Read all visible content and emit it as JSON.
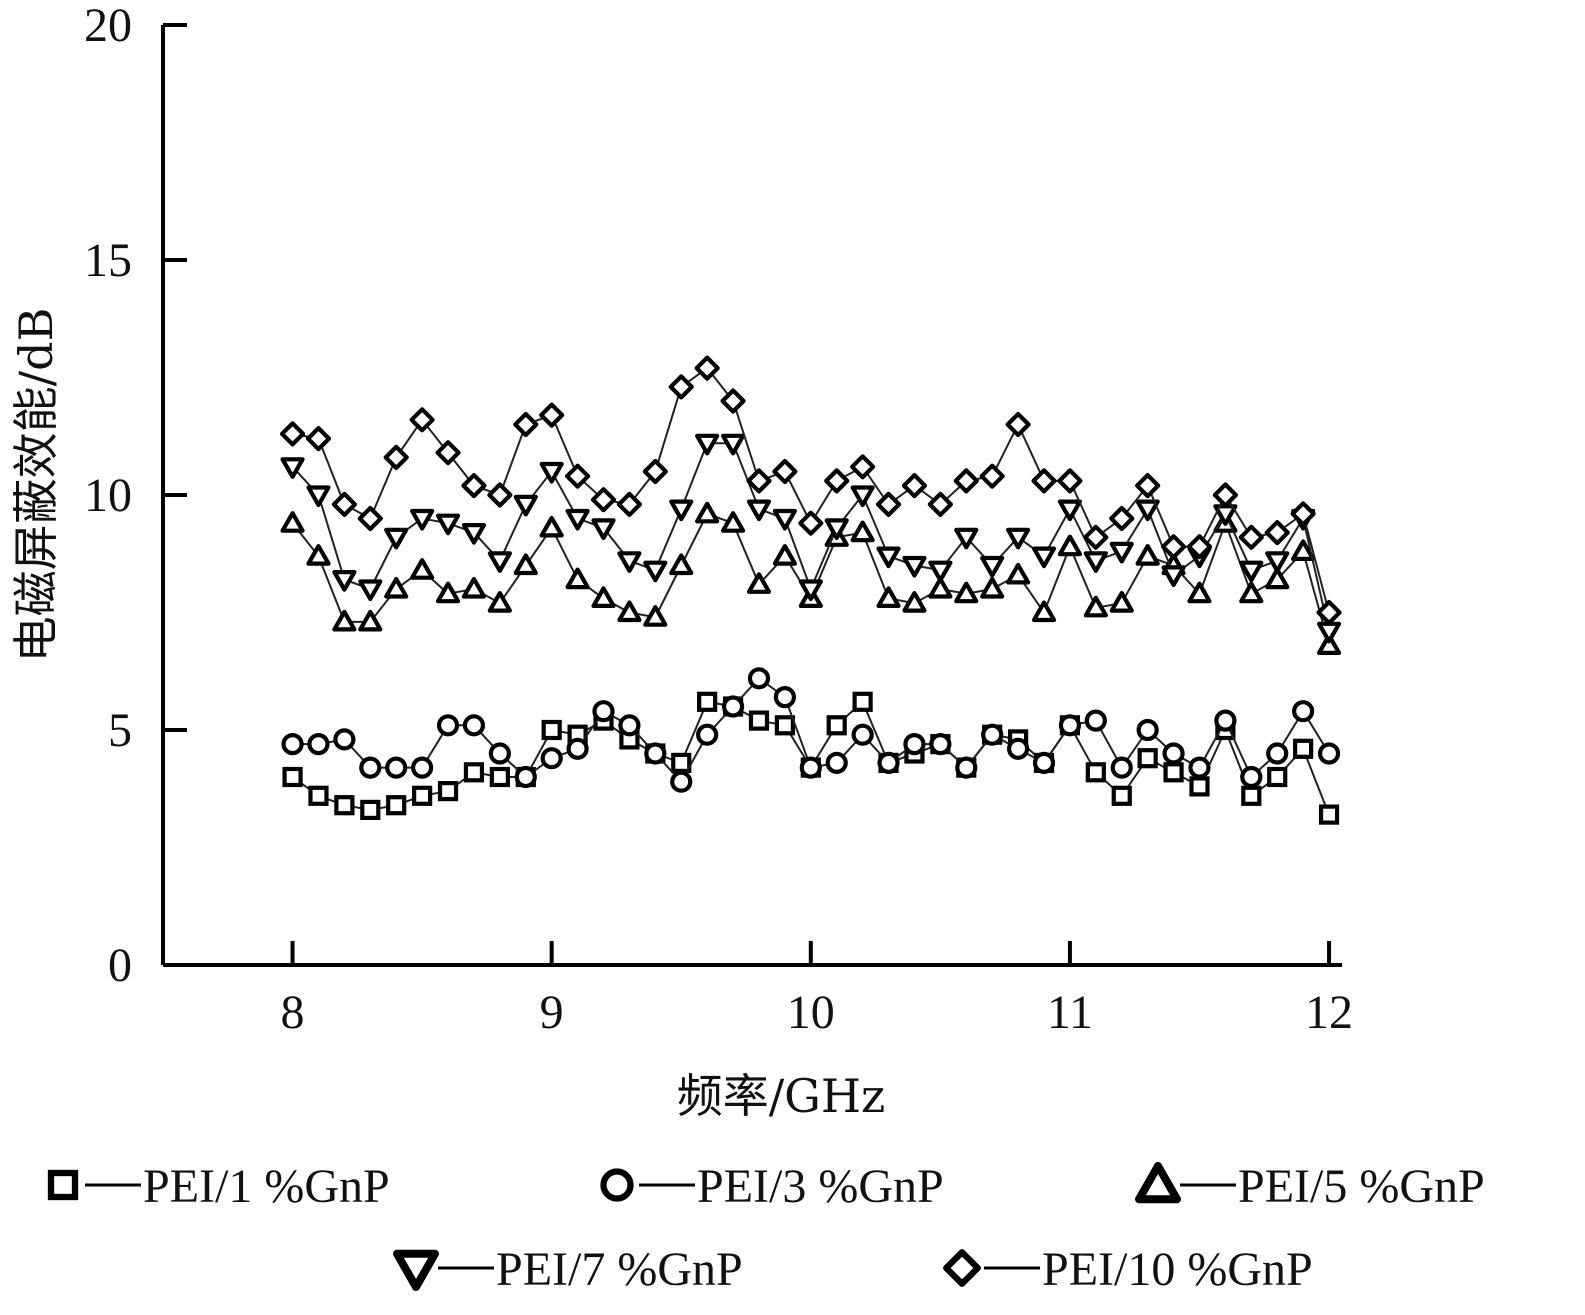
{
  "chart_data": {
    "type": "line",
    "xlabel": "频率/GHz",
    "ylabel": "电磁屏蔽效能/dB",
    "xlim": [
      7.5,
      12.05
    ],
    "ylim": [
      0,
      20
    ],
    "x_ticks": [
      "8",
      "9",
      "10",
      "11",
      "12"
    ],
    "y_ticks": [
      "0",
      "5",
      "10",
      "15",
      "20"
    ],
    "grid": false,
    "legend_position": "bottom",
    "x": [
      8.0,
      8.1,
      8.2,
      8.3,
      8.4,
      8.5,
      8.6,
      8.7,
      8.8,
      8.9,
      9.0,
      9.1,
      9.2,
      9.3,
      9.4,
      9.5,
      9.6,
      9.7,
      9.8,
      9.9,
      10.0,
      10.1,
      10.2,
      10.3,
      10.4,
      10.5,
      10.6,
      10.7,
      10.8,
      10.9,
      11.0,
      11.1,
      11.2,
      11.3,
      11.4,
      11.5,
      11.6,
      11.7,
      11.8,
      11.9,
      12.0
    ],
    "series": [
      {
        "name": "PEI/1 %GnP",
        "marker": "square",
        "values": [
          4.0,
          3.6,
          3.4,
          3.3,
          3.4,
          3.6,
          3.7,
          4.1,
          4.0,
          4.0,
          5.0,
          4.9,
          5.2,
          4.8,
          4.5,
          4.3,
          5.6,
          5.5,
          5.2,
          5.1,
          4.2,
          5.1,
          5.6,
          4.3,
          4.5,
          4.7,
          4.2,
          4.9,
          4.8,
          4.3,
          5.1,
          4.1,
          3.6,
          4.4,
          4.1,
          3.8,
          5.0,
          3.6,
          4.0,
          4.6,
          3.2
        ]
      },
      {
        "name": "PEI/3 %GnP",
        "marker": "circle",
        "values": [
          4.7,
          4.7,
          4.8,
          4.2,
          4.2,
          4.2,
          5.1,
          5.1,
          4.5,
          4.0,
          4.4,
          4.6,
          5.4,
          5.1,
          4.5,
          3.9,
          4.9,
          5.5,
          6.1,
          5.7,
          4.2,
          4.3,
          4.9,
          4.3,
          4.7,
          4.7,
          4.2,
          4.9,
          4.6,
          4.3,
          5.1,
          5.2,
          4.2,
          5.0,
          4.5,
          4.2,
          5.2,
          4.0,
          4.5,
          5.4,
          4.5
        ]
      },
      {
        "name": "PEI/5 %GnP",
        "marker": "triangle-up",
        "values": [
          9.4,
          8.7,
          7.3,
          7.3,
          8.0,
          8.4,
          7.9,
          8.0,
          7.7,
          8.5,
          9.3,
          8.2,
          7.8,
          7.5,
          7.4,
          8.5,
          9.6,
          9.4,
          8.1,
          8.7,
          7.8,
          9.1,
          9.2,
          7.8,
          7.7,
          8.0,
          7.9,
          8.0,
          8.3,
          7.5,
          8.9,
          7.6,
          7.7,
          8.7,
          8.5,
          7.9,
          9.4,
          7.9,
          8.2,
          8.8,
          6.8
        ]
      },
      {
        "name": "PEI/7 %GnP",
        "marker": "triangle-down",
        "values": [
          10.6,
          10.0,
          8.2,
          8.0,
          9.1,
          9.5,
          9.4,
          9.2,
          8.6,
          9.8,
          10.5,
          9.5,
          9.3,
          8.6,
          8.4,
          9.7,
          11.1,
          11.1,
          9.7,
          9.5,
          8.0,
          9.3,
          10.0,
          8.7,
          8.5,
          8.4,
          9.1,
          8.5,
          9.1,
          8.7,
          9.7,
          8.6,
          8.8,
          9.7,
          8.3,
          8.7,
          9.6,
          8.4,
          8.6,
          9.5,
          7.1
        ]
      },
      {
        "name": "PEI/10 %GnP",
        "marker": "diamond",
        "values": [
          11.3,
          11.2,
          9.8,
          9.5,
          10.8,
          11.6,
          10.9,
          10.2,
          10.0,
          11.5,
          11.7,
          10.4,
          9.9,
          9.8,
          10.5,
          12.3,
          12.7,
          12.0,
          10.3,
          10.5,
          9.4,
          10.3,
          10.6,
          9.8,
          10.2,
          9.8,
          10.3,
          10.4,
          11.5,
          10.3,
          10.3,
          9.1,
          9.5,
          10.2,
          8.9,
          8.9,
          10.0,
          9.1,
          9.2,
          9.6,
          7.5
        ]
      }
    ]
  }
}
